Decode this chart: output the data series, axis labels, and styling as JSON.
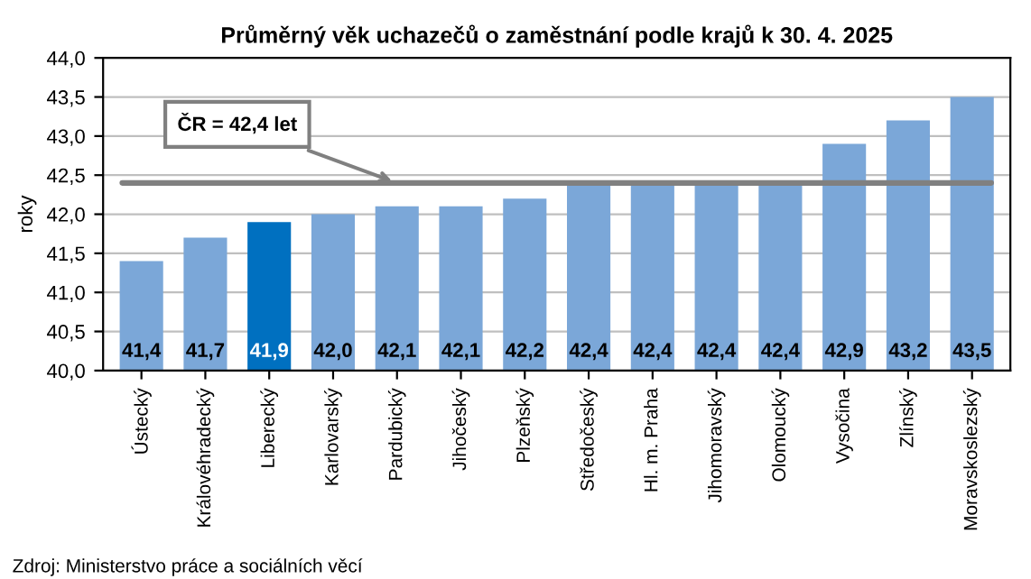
{
  "chart_data": {
    "type": "bar",
    "title": "Průměrný věk uchazečů o zaměstnání podle krajů k 30. 4. 2025",
    "ylabel": "roky",
    "categories": [
      "Ústecký",
      "Královéhradecký",
      "Liberecký",
      "Karlovarský",
      "Pardubický",
      "Jihočeský",
      "Plzeňský",
      "Středočeský",
      "Hl. m. Praha",
      "Jihomoravský",
      "Olomoucký",
      "Vysočina",
      "Zlínský",
      "Moravskoslezský"
    ],
    "values": [
      41.4,
      41.7,
      41.9,
      42.0,
      42.1,
      42.1,
      42.2,
      42.4,
      42.4,
      42.4,
      42.4,
      42.9,
      43.2,
      43.5
    ],
    "value_labels": [
      "41,4",
      "41,7",
      "41,9",
      "42,0",
      "42,1",
      "42,1",
      "42,2",
      "42,4",
      "42,4",
      "42,4",
      "42,4",
      "42,9",
      "43,2",
      "43,5"
    ],
    "colors": [
      "#7ba7d8",
      "#7ba7d8",
      "#0070c0",
      "#7ba7d8",
      "#7ba7d8",
      "#7ba7d8",
      "#7ba7d8",
      "#7ba7d8",
      "#7ba7d8",
      "#7ba7d8",
      "#7ba7d8",
      "#7ba7d8",
      "#7ba7d8",
      "#7ba7d8"
    ],
    "ylim": [
      40.0,
      44.0
    ],
    "yticks": [
      {
        "value": 40.0,
        "label": "40,0"
      },
      {
        "value": 40.5,
        "label": "40,5"
      },
      {
        "value": 41.0,
        "label": "41,0"
      },
      {
        "value": 41.5,
        "label": "41,5"
      },
      {
        "value": 42.0,
        "label": "42,0"
      },
      {
        "value": 42.5,
        "label": "42,5"
      },
      {
        "value": 43.0,
        "label": "43,0"
      },
      {
        "value": 43.5,
        "label": "43,5"
      },
      {
        "value": 44.0,
        "label": "44,0"
      }
    ],
    "grid": "y",
    "ref_lines": [
      {
        "axis": "y",
        "value": 42.4,
        "label": "ČR = 42,4 let",
        "color": "#808080"
      }
    ],
    "annotations": [
      "Zdroj: Ministerstvo práce a sociálních věcí"
    ]
  }
}
